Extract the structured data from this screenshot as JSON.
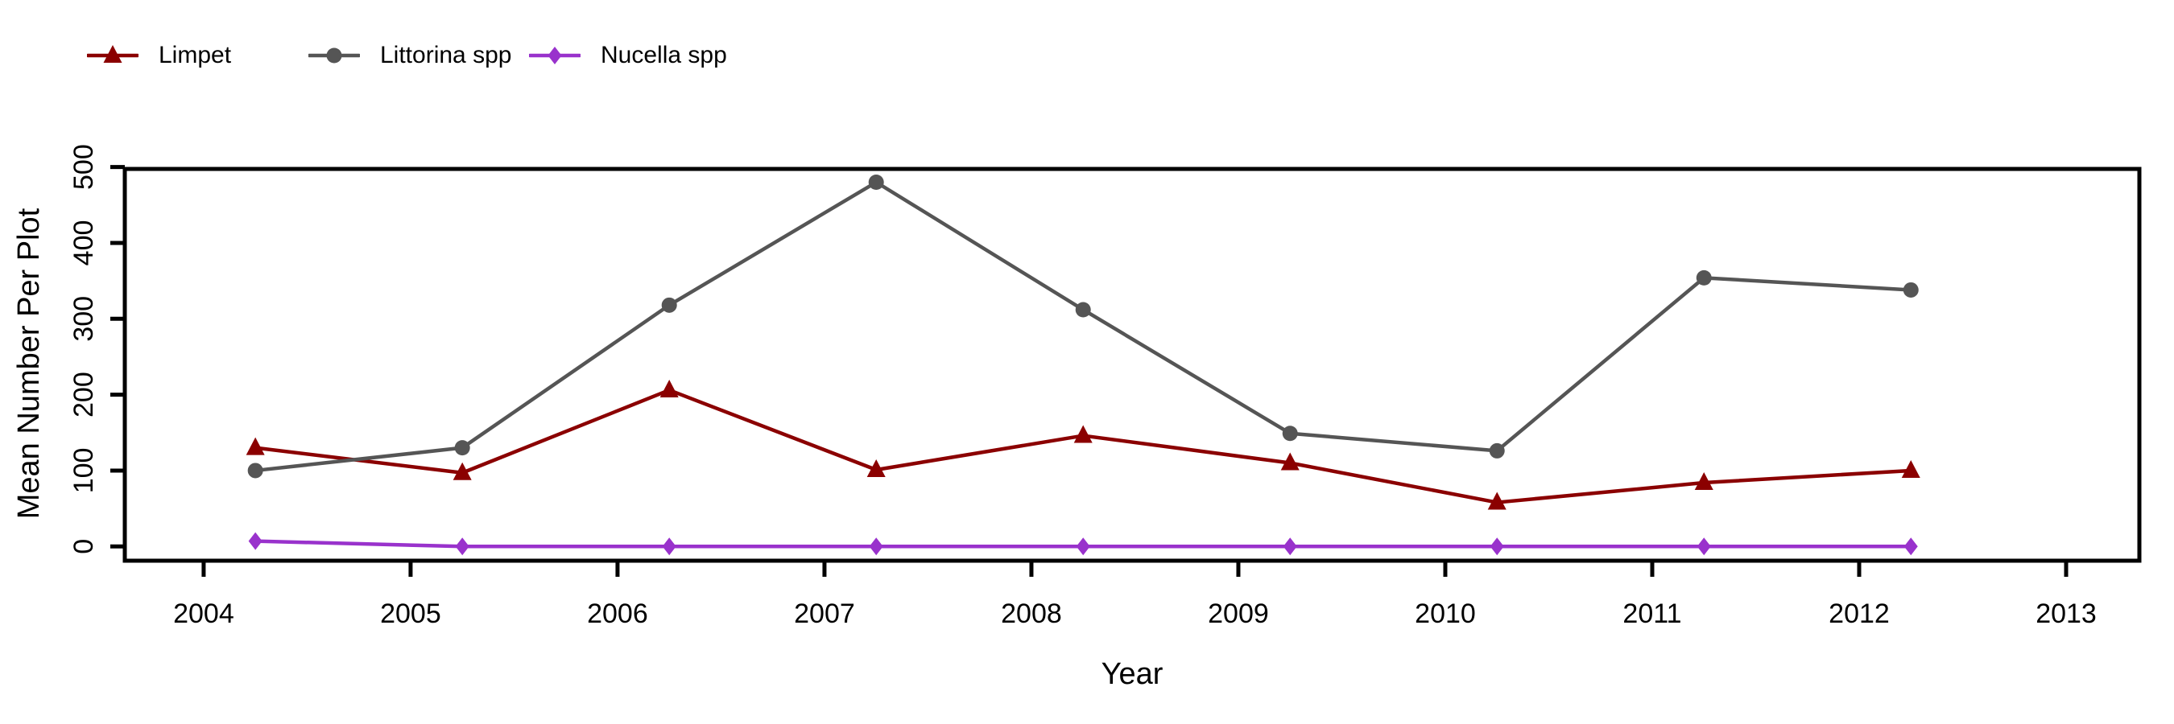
{
  "figure": {
    "title": "",
    "xlabel": "Year",
    "ylabel": "Mean Number Per Plot"
  },
  "chart_data": {
    "type": "line",
    "title": "",
    "xlabel": "Year",
    "ylabel": "Mean Number Per Plot",
    "x": [
      2004.25,
      2005.25,
      2006.25,
      2007.25,
      2008.25,
      2009.25,
      2010.25,
      2011.25,
      2012.25
    ],
    "series": [
      {
        "name": "Limpet",
        "color": "#8B0000",
        "marker": "triangle",
        "values": [
          130,
          97,
          206,
          101,
          146,
          110,
          58,
          84,
          100
        ]
      },
      {
        "name": "Littorina spp",
        "color": "#555555",
        "marker": "circle",
        "values": [
          100,
          130,
          318,
          480,
          312,
          149,
          126,
          354,
          338
        ]
      },
      {
        "name": "Nucella spp",
        "color": "#9932CC",
        "marker": "diamond",
        "values": [
          7,
          0,
          0,
          0,
          0,
          0,
          0,
          0,
          0
        ]
      }
    ],
    "x_ticks": [
      "2004",
      "2005",
      "2006",
      "2007",
      "2008",
      "2009",
      "2010",
      "2011",
      "2012",
      "2013"
    ],
    "x_tick_values": [
      2004,
      2005,
      2006,
      2007,
      2008,
      2009,
      2010,
      2011,
      2012,
      2013
    ],
    "y_ticks": [
      "0",
      "100",
      "200",
      "300",
      "400",
      "500"
    ],
    "y_tick_values": [
      0,
      100,
      200,
      300,
      400,
      500
    ],
    "xlim": [
      2003.619,
      2013.354
    ],
    "ylim": [
      -18.8,
      497.5
    ],
    "grid": false,
    "legend_position": "top-left",
    "axis_color": "#000000"
  }
}
